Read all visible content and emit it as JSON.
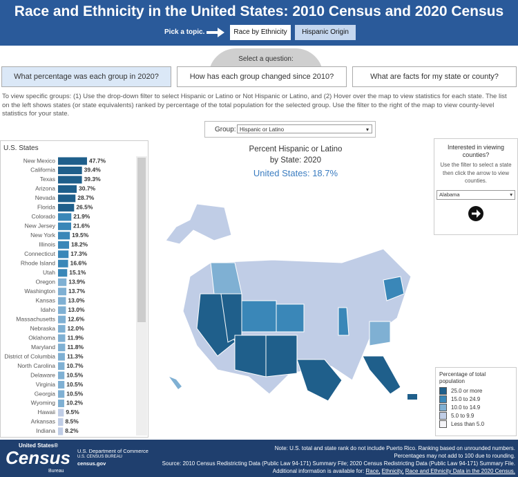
{
  "header": {
    "title": "Race and Ethnicity in the United States: 2010 Census and 2020 Census",
    "pick": "Pick a topic.",
    "topics": [
      "Race by Ethnicity",
      "Hispanic Origin"
    ]
  },
  "question_label": "Select a question:",
  "tabs": [
    "What percentage was each group in 2020?",
    "How has each group changed since 2010?",
    "What are facts for my state or county?"
  ],
  "instructions": "To view specific groups: (1) Use the drop-down filter to select Hispanic or Latino or Not Hispanic or Latino, and (2) Hover over the map to view statistics for each state. The list on the left shows states (or state equivalents) ranked by percentage of the total population for the selected group. Use the filter to the right of the map to view county-level statistics for your state.",
  "group_filter": {
    "label": "Group:",
    "value": "Hispanic or Latino"
  },
  "chart_data": {
    "type": "bar",
    "title": "U.S. States",
    "categories": [
      "New Mexico",
      "California",
      "Texas",
      "Arizona",
      "Nevada",
      "Florida",
      "Colorado",
      "New Jersey",
      "New York",
      "Illinois",
      "Connecticut",
      "Rhode Island",
      "Utah",
      "Oregon",
      "Washington",
      "Kansas",
      "Idaho",
      "Massachusetts",
      "Nebraska",
      "Oklahoma",
      "Maryland",
      "District of Columbia",
      "North Carolina",
      "Delaware",
      "Virginia",
      "Georgia",
      "Wyoming",
      "Hawaii",
      "Arkansas",
      "Indiana"
    ],
    "values": [
      47.7,
      39.4,
      39.3,
      30.7,
      28.7,
      26.5,
      21.9,
      21.6,
      19.5,
      18.2,
      17.3,
      16.6,
      15.1,
      13.9,
      13.7,
      13.0,
      13.0,
      12.6,
      12.0,
      11.9,
      11.8,
      11.3,
      10.7,
      10.5,
      10.5,
      10.5,
      10.2,
      9.5,
      8.5,
      8.2
    ],
    "value_labels": [
      "47.7%",
      "39.4%",
      "39.3%",
      "30.7%",
      "28.7%",
      "26.5%",
      "21.9%",
      "21.6%",
      "19.5%",
      "18.2%",
      "17.3%",
      "16.6%",
      "15.1%",
      "13.9%",
      "13.7%",
      "13.0%",
      "13.0%",
      "12.6%",
      "12.0%",
      "11.9%",
      "11.8%",
      "11.3%",
      "10.7%",
      "10.5%",
      "10.5%",
      "10.5%",
      "10.2%",
      "9.5%",
      "8.5%",
      "8.2%"
    ],
    "colors": [
      "#1f5f8b",
      "#1f5f8b",
      "#1f5f8b",
      "#1f5f8b",
      "#1f5f8b",
      "#1f5f8b",
      "#3a87b8",
      "#3a87b8",
      "#3a87b8",
      "#3a87b8",
      "#3a87b8",
      "#3a87b8",
      "#3a87b8",
      "#7fb0d3",
      "#7fb0d3",
      "#7fb0d3",
      "#7fb0d3",
      "#7fb0d3",
      "#7fb0d3",
      "#7fb0d3",
      "#7fb0d3",
      "#7fb0d3",
      "#7fb0d3",
      "#7fb0d3",
      "#7fb0d3",
      "#7fb0d3",
      "#7fb0d3",
      "#c0cde6",
      "#c0cde6",
      "#c0cde6"
    ]
  },
  "map": {
    "title_lines": [
      "Percent Hispanic or Latino",
      "by State: 2020"
    ],
    "us_label": "United States:",
    "us_value": "18.7%"
  },
  "county_panel": {
    "title": "Interested in viewing counties?",
    "hint": "Use the filter to select a state then click the arrow to view counties.",
    "state": "Alabama"
  },
  "legend": {
    "title": "Percentage of total population",
    "items": [
      {
        "label": "25.0 or more",
        "color": "#1f5f8b"
      },
      {
        "label": "15.0 to 24.9",
        "color": "#3a87b8"
      },
      {
        "label": "10.0 to 14.9",
        "color": "#7fb0d3"
      },
      {
        "label": "5.0 to 9.9",
        "color": "#c0cde6"
      },
      {
        "label": "Less than 5.0",
        "color": "#f4f4f8"
      }
    ]
  },
  "footer": {
    "logo_top": "United States®",
    "logo": "Census",
    "logo_sub": "Bureau",
    "dept": "U.S. Department of Commerce",
    "bureau": "U.S. CENSUS BUREAU",
    "site": "census.gov",
    "notes": [
      "Note: U.S. total and state rank do not include Puerto Rico. Ranking based on unrounded numbers.",
      "Percentages may not add to 100 due to rounding.",
      "Source: 2010 Census Redistricting Data (Public Law 94-171) Summary File; 2020 Census Redistricting Data (Public Law 94-171) Summary File."
    ],
    "more": "Additional information is available for:",
    "links": [
      "Race,",
      "Ethnicity,",
      "Race and Ethnicity Data in the 2020 Census."
    ]
  }
}
